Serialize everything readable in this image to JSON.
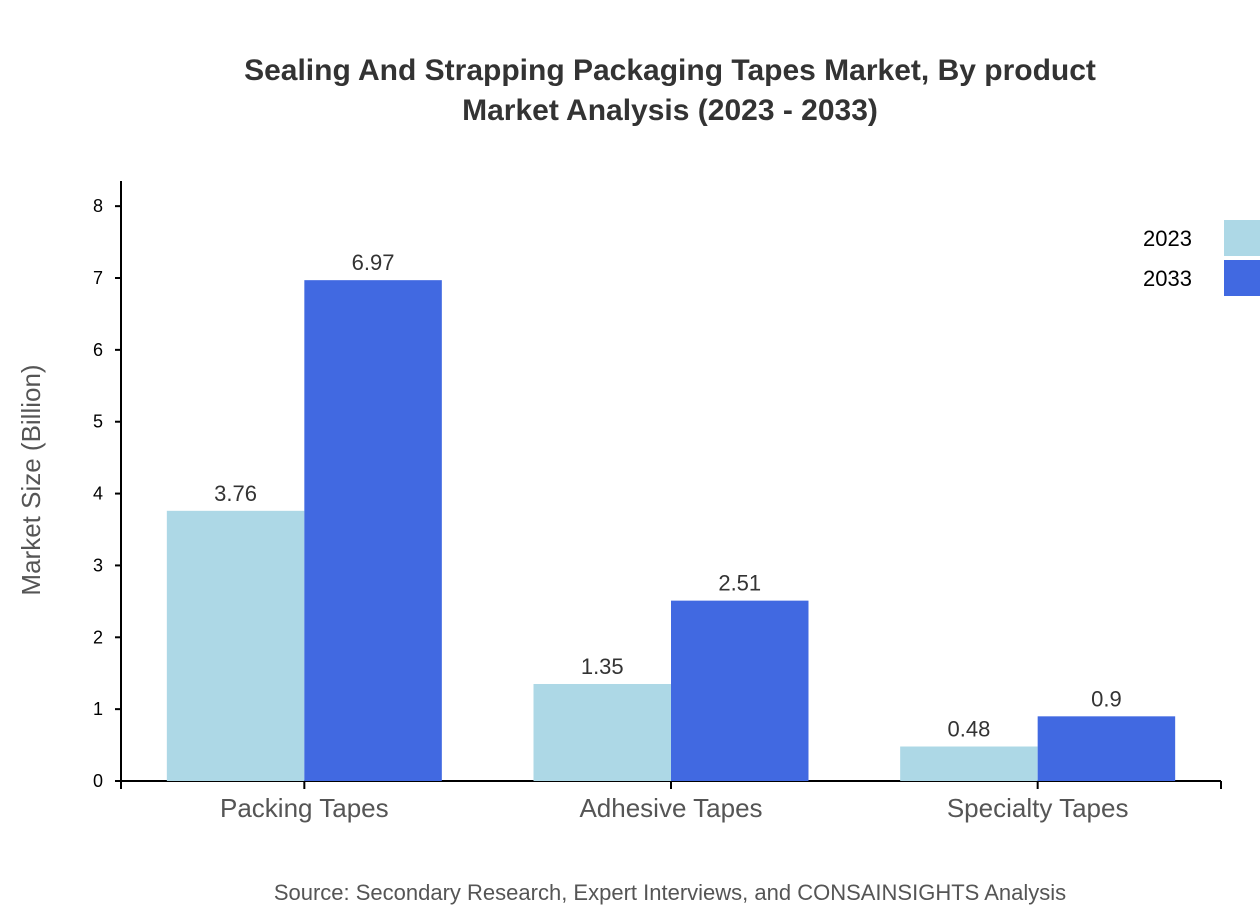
{
  "chart_data": {
    "type": "bar",
    "title": [
      "Sealing And Strapping Packaging Tapes Market, By product",
      "Market Analysis (2023 - 2033)"
    ],
    "ylabel": "Market Size (Billion)",
    "xlabel": "",
    "categories": [
      "Packing Tapes",
      "Adhesive Tapes",
      "Specialty Tapes"
    ],
    "series": [
      {
        "name": "2023",
        "values": [
          3.76,
          1.35,
          0.48
        ],
        "labels": [
          "3.76",
          "1.35",
          "0.48"
        ],
        "color": "#add8e6"
      },
      {
        "name": "2033",
        "values": [
          6.97,
          2.51,
          0.9
        ],
        "labels": [
          "6.97",
          "2.51",
          "0.9"
        ],
        "color": "#4169e1"
      }
    ],
    "ylim": [
      0,
      8.35
    ],
    "yticks": [
      0,
      1,
      2,
      3,
      4,
      5,
      6,
      7,
      8
    ],
    "grid": false,
    "legend": "top-right",
    "source": "Source: Secondary Research, Expert Interviews, and CONSAINSIGHTS Analysis"
  }
}
